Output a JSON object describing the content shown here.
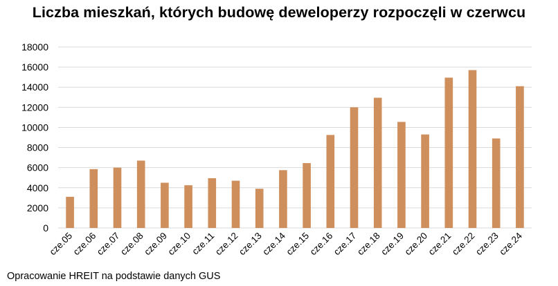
{
  "chart_data": {
    "type": "bar",
    "title": "Liczba mieszkań, których budowę deweloperzy rozpoczęli w czerwcu",
    "source": "Opracowanie HREIT na podstawie danych GUS",
    "xlabel": "",
    "ylabel": "",
    "categories": [
      "cze.05",
      "cze.06",
      "cze.07",
      "cze.08",
      "cze.09",
      "cze.10",
      "cze.11",
      "cze.12",
      "cze.13",
      "cze.14",
      "cze.15",
      "cze.16",
      "cze.17",
      "cze.18",
      "cze.19",
      "cze.20",
      "cze.21",
      "cze.22",
      "cze.23",
      "cze.24"
    ],
    "values": [
      3100,
      5850,
      6000,
      6700,
      4500,
      4250,
      4950,
      4700,
      3900,
      5750,
      6450,
      9250,
      12000,
      12950,
      10550,
      9300,
      14950,
      15700,
      8900,
      14100
    ],
    "ylim": [
      0,
      18000
    ],
    "yticks": [
      0,
      2000,
      4000,
      6000,
      8000,
      10000,
      12000,
      14000,
      16000,
      18000
    ],
    "grid": true,
    "legend": "none",
    "bar_color": "#cf8f5c",
    "grid_color": "#d9d9d9"
  }
}
